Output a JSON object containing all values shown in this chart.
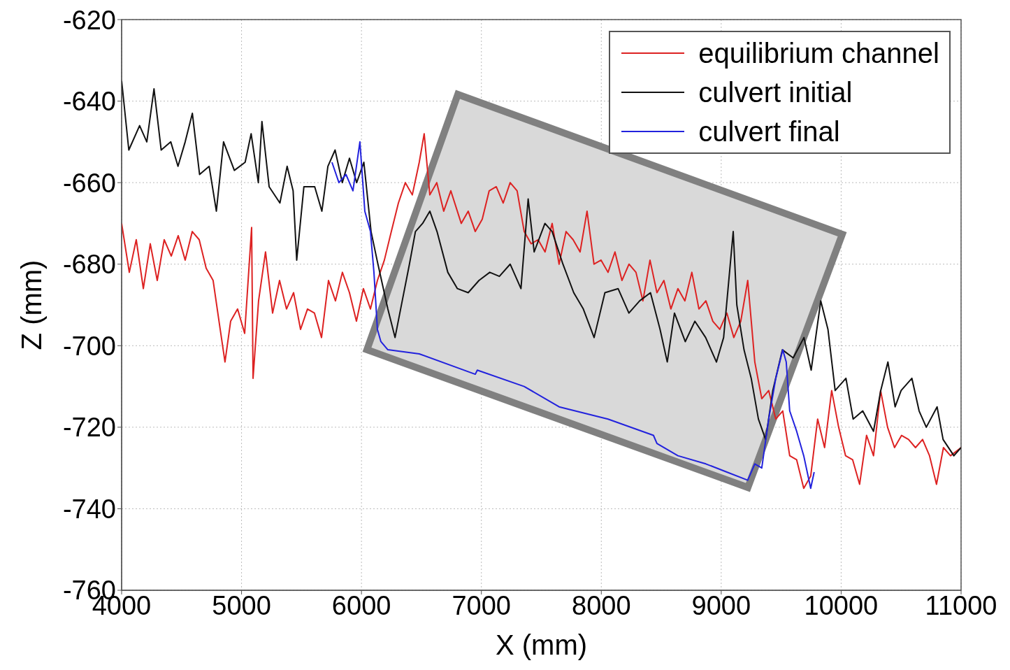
{
  "chart_data": {
    "type": "line",
    "xlabel": "X (mm)",
    "ylabel": "Z (mm)",
    "xlim": [
      4000,
      11000
    ],
    "xticks": [
      4000,
      5000,
      6000,
      7000,
      8000,
      9000,
      10000,
      11000
    ],
    "ylim": [
      -760,
      -620
    ],
    "yticks": [
      -760,
      -740,
      -720,
      -700,
      -680,
      -660,
      -640,
      -620
    ],
    "grid": true,
    "legend": "top right",
    "marker": "none",
    "line_style": "solid",
    "series": [
      {
        "name": "equilibrium channel",
        "color": "#dd2222",
        "x": [
          4000,
          4064,
          4122,
          4181,
          4239,
          4297,
          4355,
          4414,
          4472,
          4530,
          4589,
          4647,
          4705,
          4763,
          4822,
          4862,
          4909,
          4967,
          5026,
          5084,
          5096,
          5142,
          5200,
          5259,
          5317,
          5375,
          5434,
          5492,
          5550,
          5608,
          5667,
          5725,
          5783,
          5841,
          5900,
          5958,
          6016,
          6075,
          6133,
          6191,
          6249,
          6308,
          6366,
          6424,
          6482,
          6523,
          6570,
          6628,
          6686,
          6745,
          6832,
          6890,
          6949,
          7007,
          7065,
          7124,
          7182,
          7240,
          7298,
          7357,
          7415,
          7473,
          7531,
          7590,
          7648,
          7706,
          7765,
          7823,
          7881,
          7939,
          7998,
          8056,
          8114,
          8172,
          8231,
          8289,
          8347,
          8406,
          8464,
          8522,
          8580,
          8639,
          8697,
          8755,
          8814,
          8872,
          8930,
          8988,
          9047,
          9105,
          9163,
          9221,
          9280,
          9338,
          9396,
          9455,
          9513,
          9571,
          9629,
          9688,
          9746,
          9804,
          9862,
          9921,
          9979,
          10037,
          10096,
          10154,
          10212,
          10270,
          10329,
          10387,
          10445,
          10504,
          10562,
          10620,
          10679,
          10737,
          10795,
          10853,
          10912,
          11000
        ],
        "values": [
          -670,
          -682,
          -674,
          -686,
          -675,
          -684,
          -674,
          -678,
          -673,
          -679,
          -672,
          -674,
          -681,
          -684,
          -696,
          -704,
          -694,
          -691,
          -697,
          -671,
          -708,
          -689,
          -677,
          -692,
          -684,
          -691,
          -687,
          -696,
          -691,
          -692,
          -698,
          -684,
          -689,
          -682,
          -687,
          -694,
          -686,
          -691,
          -684,
          -679,
          -672,
          -665,
          -660,
          -663,
          -655,
          -648,
          -663,
          -660,
          -667,
          -662,
          -670,
          -667,
          -672,
          -669,
          -662,
          -661,
          -665,
          -660,
          -662,
          -672,
          -675,
          -674,
          -677,
          -670,
          -680,
          -672,
          -674,
          -677,
          -667,
          -680,
          -679,
          -682,
          -677,
          -684,
          -680,
          -682,
          -689,
          -679,
          -687,
          -684,
          -691,
          -686,
          -689,
          -682,
          -691,
          -689,
          -694,
          -696,
          -692,
          -698,
          -694,
          -684,
          -704,
          -713,
          -711,
          -718,
          -716,
          -727,
          -728,
          -735,
          -732,
          -718,
          -725,
          -711,
          -720,
          -727,
          -728,
          -734,
          -722,
          -727,
          -711,
          -720,
          -725,
          -722,
          -723,
          -725,
          -723,
          -727,
          -734,
          -725,
          -727,
          -725
        ]
      },
      {
        "name": "culvert initial",
        "color": "#111111",
        "x": [
          4000,
          4060,
          4150,
          4210,
          4270,
          4330,
          4410,
          4470,
          4530,
          4590,
          4650,
          4730,
          4790,
          4850,
          4940,
          5030,
          5080,
          5140,
          5170,
          5230,
          5320,
          5380,
          5430,
          5460,
          5520,
          5610,
          5670,
          5720,
          5780,
          5840,
          5900,
          5960,
          6020,
          6080,
          6130,
          6160,
          6220,
          6280,
          6340,
          6400,
          6450,
          6510,
          6570,
          6630,
          6720,
          6800,
          6890,
          6980,
          7070,
          7150,
          7240,
          7330,
          7390,
          7440,
          7530,
          7590,
          7680,
          7770,
          7850,
          7940,
          8030,
          8140,
          8230,
          8320,
          8410,
          8490,
          8550,
          8610,
          8700,
          8780,
          8870,
          8960,
          9020,
          9100,
          9130,
          9190,
          9250,
          9310,
          9370,
          9430,
          9510,
          9600,
          9690,
          9750,
          9830,
          9890,
          9950,
          10040,
          10100,
          10180,
          10270,
          10330,
          10390,
          10450,
          10500,
          10590,
          10650,
          10710,
          10800,
          10850,
          10940,
          11000
        ],
        "values": [
          -635,
          -652,
          -646,
          -650,
          -637,
          -652,
          -650,
          -656,
          -650,
          -643,
          -658,
          -656,
          -667,
          -650,
          -657,
          -655,
          -648,
          -660,
          -645,
          -661,
          -665,
          -656,
          -662,
          -679,
          -661,
          -661,
          -667,
          -656,
          -652,
          -660,
          -654,
          -660,
          -655,
          -672,
          -679,
          -683,
          -691,
          -698,
          -689,
          -680,
          -672,
          -670,
          -667,
          -672,
          -682,
          -686,
          -687,
          -684,
          -682,
          -683,
          -680,
          -686,
          -664,
          -677,
          -670,
          -672,
          -680,
          -687,
          -691,
          -698,
          -687,
          -686,
          -692,
          -689,
          -687,
          -696,
          -704,
          -692,
          -699,
          -694,
          -698,
          -704,
          -698,
          -672,
          -690,
          -701,
          -708,
          -718,
          -723,
          -711,
          -701,
          -703,
          -698,
          -706,
          -689,
          -696,
          -711,
          -708,
          -718,
          -716,
          -721,
          -711,
          -704,
          -715,
          -711,
          -708,
          -716,
          -720,
          -715,
          -723,
          -727,
          -725
        ]
      },
      {
        "name": "culvert final",
        "color": "#2222dd",
        "x": [
          5754,
          5812,
          5871,
          5929,
          5987,
          6028,
          6075,
          6104,
          6133,
          6162,
          6220,
          6482,
          6949,
          6966,
          7357,
          7648,
          8056,
          8435,
          8464,
          8639,
          8872,
          9047,
          9221,
          9280,
          9338,
          9396,
          9455,
          9513,
          9542,
          9571,
          9629,
          9688,
          9746,
          9775
        ],
        "values": [
          -655,
          -660,
          -658,
          -662,
          -650,
          -667,
          -672,
          -682,
          -696,
          -699,
          -701,
          -702,
          -707,
          -706,
          -710,
          -715,
          -718,
          -722,
          -724,
          -727,
          -729,
          -731,
          -733,
          -729,
          -730,
          -718,
          -708,
          -701,
          -704,
          -716,
          -721,
          -727,
          -735,
          -731
        ]
      }
    ]
  }
}
